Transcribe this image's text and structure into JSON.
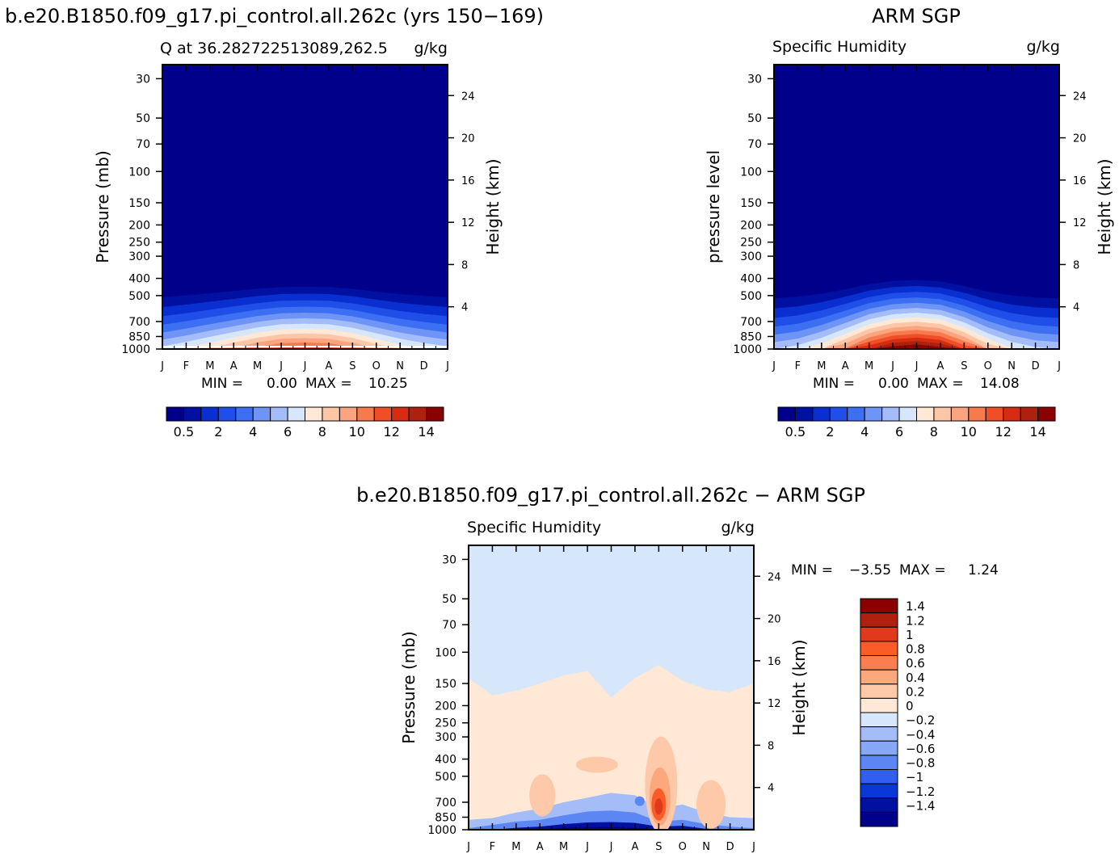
{
  "chart_data": [
    {
      "type": "heatmap",
      "figure_title": "b.e20.B1850.f09_g17.pi_control.all.262c (yrs 150−169)",
      "title": "Q at 36.2827225130​89,262.5",
      "units": "g/kg",
      "ylabel": "Pressure (mb)",
      "ylabel_right": "Height (km)",
      "x": [
        "J",
        "F",
        "M",
        "A",
        "M",
        "J",
        "J",
        "A",
        "S",
        "O",
        "N",
        "D",
        "J"
      ],
      "y_ticks": [
        30,
        50,
        70,
        100,
        150,
        200,
        250,
        300,
        400,
        500,
        700,
        850,
        1000
      ],
      "y_right_ticks": [
        24,
        20,
        16,
        12,
        8,
        4
      ],
      "ylim": [
        1000,
        25
      ],
      "y_scale": "log",
      "stats": {
        "min_label": "MIN =",
        "min": "0.00",
        "max_label": "MAX =",
        "max": "10.25"
      },
      "surface_levels": [
        5.0,
        5.8,
        6.8,
        7.9,
        9.1,
        10.0,
        10.2,
        10.0,
        9.0,
        7.6,
        6.4,
        5.6,
        5.0
      ],
      "colorbar": {
        "labels": [
          "0.5",
          "2",
          "4",
          "6",
          "8",
          "10",
          "12",
          "14"
        ]
      }
    },
    {
      "type": "heatmap",
      "figure_title": "ARM SGP",
      "title": "Specific Humidity",
      "units": "g/kg",
      "ylabel": "pressure level",
      "ylabel_right": "Height (km)",
      "x": [
        "J",
        "F",
        "M",
        "A",
        "M",
        "J",
        "J",
        "A",
        "S",
        "O",
        "N",
        "D",
        "J"
      ],
      "y_ticks": [
        30,
        50,
        70,
        100,
        150,
        200,
        250,
        300,
        400,
        500,
        700,
        850,
        1000
      ],
      "y_right_ticks": [
        24,
        20,
        16,
        12,
        8,
        4
      ],
      "ylim": [
        1000,
        25
      ],
      "y_scale": "log",
      "stats": {
        "min_label": "MIN =",
        "min": "0.00",
        "max_label": "MAX =",
        "max": "14.08"
      },
      "surface_levels": [
        4.6,
        5.2,
        6.6,
        8.8,
        11.6,
        13.4,
        14.0,
        13.2,
        10.6,
        7.6,
        5.8,
        4.9,
        4.6
      ],
      "colorbar": {
        "labels": [
          "0.5",
          "2",
          "4",
          "6",
          "8",
          "10",
          "12",
          "14"
        ]
      }
    },
    {
      "type": "heatmap",
      "figure_title": "b.e20.B1850.f09_g17.pi_control.all.262c − ARM SGP",
      "title": "Specific Humidity",
      "units": "g/kg",
      "ylabel": "Pressure (mb)",
      "ylabel_right": "Height (km)",
      "x": [
        "J",
        "F",
        "M",
        "A",
        "M",
        "J",
        "J",
        "A",
        "S",
        "O",
        "N",
        "D",
        "J"
      ],
      "y_ticks": [
        30,
        50,
        70,
        100,
        150,
        200,
        250,
        300,
        400,
        500,
        700,
        850,
        1000
      ],
      "y_right_ticks": [
        24,
        20,
        16,
        12,
        8,
        4
      ],
      "ylim": [
        1000,
        25
      ],
      "y_scale": "log",
      "stats": {
        "min_label": "MIN =",
        "min": "−3.55",
        "max_label": "MAX =",
        "max": "1.24"
      },
      "zero_boundary_pressure": [
        140,
        175,
        165,
        150,
        135,
        128,
        180,
        140,
        118,
        145,
        162,
        168,
        150
      ],
      "colorbar": {
        "labels": [
          "1.4",
          "1.2",
          "1",
          "0.8",
          "0.6",
          "0.4",
          "0.2",
          "0",
          "−0.2",
          "−0.4",
          "−0.6",
          "−0.8",
          "−1",
          "−1.2",
          "−1.4"
        ]
      }
    }
  ],
  "colors": {
    "positive_scale": [
      "#00008b",
      "#0010a0",
      "#0a2fd0",
      "#1f4fe8",
      "#3d6ff2",
      "#6e94f5",
      "#a4bdf8",
      "#d6e6fb",
      "#ffe9d6",
      "#fdc6a6",
      "#fca480",
      "#f77a4f",
      "#f04e28",
      "#d62d12",
      "#b0200e",
      "#8b0000"
    ],
    "diff_scale": [
      "#8b0000",
      "#b0200e",
      "#e03a1c",
      "#fa5c28",
      "#fb7e4f",
      "#fca77c",
      "#fdc9a8",
      "#ffe9d6",
      "#d6e6fb",
      "#a4bdf8",
      "#86a6f6",
      "#5b86f3",
      "#2f5ef0",
      "#0a37d8",
      "#0010a0",
      "#00008b"
    ]
  }
}
